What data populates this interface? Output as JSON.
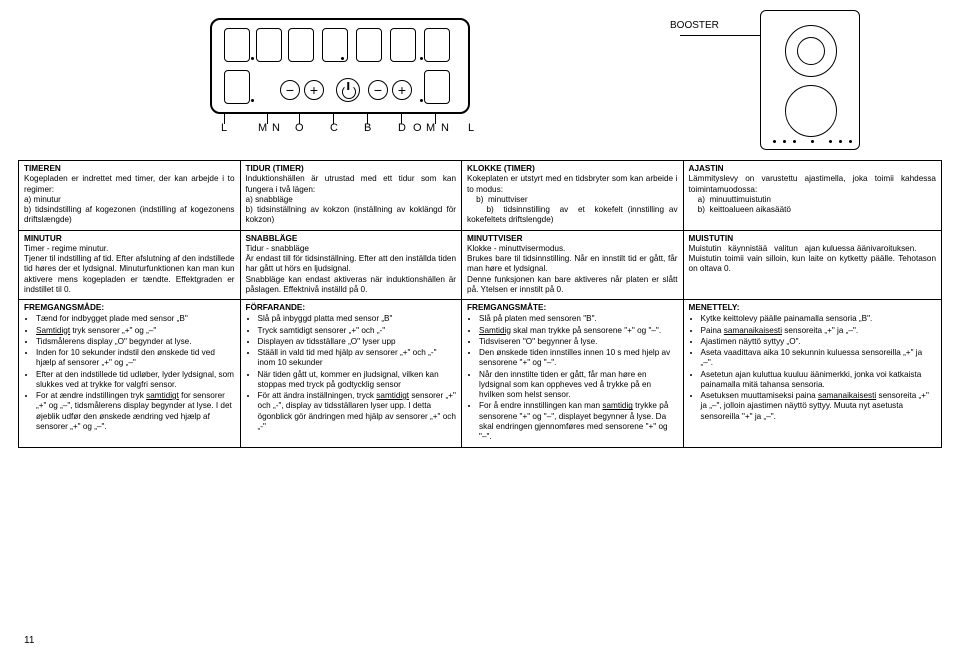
{
  "diagram": {
    "labels": {
      "L": "L",
      "M": "M",
      "N": "N",
      "O": "O",
      "C": "C",
      "B": "B",
      "D": "D"
    },
    "booster": "BOOSTER"
  },
  "grid": [
    [
      {
        "title": "TIMEREN",
        "body": "Kogepladen er indrettet med timer, der kan arbejde i to regimer:\na) minutur\nb) tidsindstilling af kogezonen (indstilling af kogezonens driftslængde)"
      },
      {
        "title": "TIDUR (TIMER)",
        "body": "Induktionshällen är utrustad med ett tidur som kan fungera i två lägen:\na) snabbläge\nb) tidsinställning av kokzon (inställning av koklängd för kokzon)"
      },
      {
        "title": "KLOKKE (TIMER)",
        "body": "Kokeplaten er utstyrt med en tidsbryter som kan arbeide i to modus:\n    b)  minuttviser\n    b)  tidsinnstilling  av  et  kokefelt (innstilling av kokefeltets driftslengde)"
      },
      {
        "title": "AJASTIN",
        "body": "Lämmityslevy on varustettu ajastimella, joka toimii kahdessa toimintamuodossa:\n    a)  minuuttimuistutin\n    b)  keittoalueen aikasäätö"
      }
    ],
    [
      {
        "title": "MINUTUR",
        "body": "Timer - regime minutur.\nTjener til indstilling af tid. Efter afslutning af den indstillede tid høres der et lydsignal. Minuturfunktionen kan man kun aktivere mens kogepladen er tændte. Effektgraden er indstillet til 0."
      },
      {
        "title": "SNABBLÄGE",
        "body": "Tidur - snabbläge\nÄr endast till för tidsinställning. Efter att den inställda tiden har gått ut hörs en ljudsignal.\nSnabbläge kan endast aktiveras när induktionshällen är påslagen. Effektnivå inställd på 0."
      },
      {
        "title": "MINUTTVISER",
        "body": "Klokke - minuttvisermodus.\nBrukes bare til tidsinnstilling. Når en innstilt tid er gått, får man høre et lydsignal.\nDenne funksjonen kan bare aktiveres når platen er slått på. Ytelsen er innstilt på 0."
      },
      {
        "title": "MUISTUTIN",
        "body": "Muistutin   käynnistää   valitun   ajan kuluessa äänivaroituksen.\nMuistutin toimii vain silloin, kun laite on kytketty päälle. Tehotason on oltava 0."
      }
    ],
    [
      {
        "title": "FREMGANGSMÅDE:",
        "type": "list",
        "items": [
          "Tænd for indbygget plade med sensor „B\"",
          "<span class='u'>Samtidigt</span> tryk sensorer „+\" og „–\"",
          "Tidsmålerens display „O\" begynder at lyse.",
          "Inden for 10 sekunder indstil den ønskede tid ved hjælp af sensorer „+\" og „–\"",
          "Efter at den indstillede tid udløber, lyder lydsignal, som slukkes ved at trykke for valgfri sensor.",
          "For at ændre indstillingen tryk <span class='u'>samtidigt</span> for sensorer „+\" og „–\", tidsmålerens display begynder at lyse. I det øjeblik udfør den ønskede ændring ved hjælp af sensorer „+\" og „–\"."
        ]
      },
      {
        "title": "FÖRFARANDE:",
        "type": "list",
        "items": [
          "Slå på inbyggd platta med sensor „B\"",
          "Tryck samtidigt sensorer „+\" och „-\"",
          "Displayen av tidsställare „O\" lyser upp",
          "Stääll in vald tid med hjälp av sensorer „+\" och „-\" inom 10 sekunder",
          "När tiden gått ut, kommer en jludsignal, vilken kan stoppas med tryck på godtycklig sensor",
          "För att ändra inställningen, tryck <span class='u'>samtidigt</span> sensorer „+\" och „-\", display av tidsställaren lyser upp. I detta ögonblick gör ändringen med hjälp av sensorer „+\" och „-\""
        ]
      },
      {
        "title": "FREMGANGSMÅTE:",
        "type": "list",
        "items": [
          "Slå på platen med sensoren \"B\".",
          "<span class='u'>Samtidig</span> skal man trykke på sensorene \"+\" og \"–\".",
          "Tidsviseren \"O\" begynner å lyse.",
          "Den ønskede tiden innstilles innen 10 s med hjelp av sensorene \"+\" og \"–\".",
          "Når den innstilte tiden er gått, får man høre en lydsignal som kan oppheves ved å trykke på en hvilken som helst sensor.",
          "For å endre innstillingen kan man <span class='u'>samtidig</span> trykke på sensorene \"+\" og \"–\", displayet begynner å lyse. Da skal endringen gjennomføres med sensorene \"+\" og \"–\"."
        ]
      },
      {
        "title": "MENETTELY:",
        "type": "list",
        "items": [
          "Kytke keittolevy päälle painamalla sensoria „B\".",
          "Paina <span class='u'>samanaikaisesti</span> sensoreita „+\" ja „–\".",
          "Ajastimen näyttö syttyy „O\".",
          "Aseta vaadittava aika 10 sekunnin kuluessa sensoreilla „+\" ja „–\".",
          "Asetetun ajan kuluttua kuuluu äänimerkki, jonka voi katkaista painamalla mitä tahansa sensoria.",
          "Asetuksen muuttamiseksi paina <span class='u'>samanaikaisesti</span> sensoreita „+\" ja „–\", jolloin ajastimen näyttö syttyy. Muuta nyt asetusta sensoreilla \"+\" ja „–\"."
        ]
      }
    ]
  ],
  "pageNumber": "11"
}
